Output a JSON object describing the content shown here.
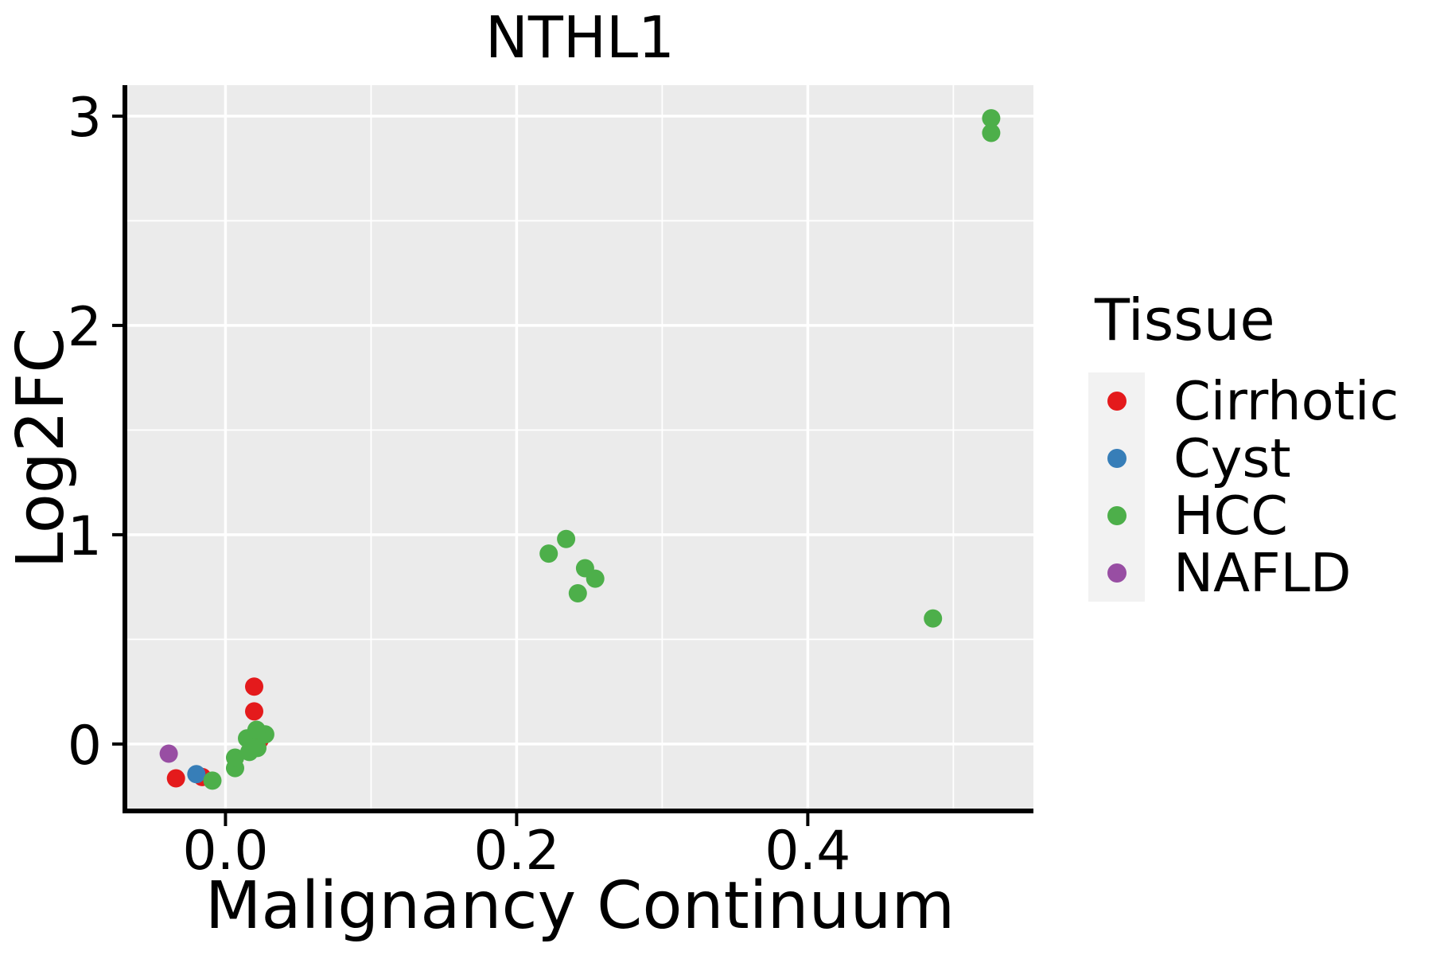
{
  "title": "NTHL1",
  "axes": {
    "x": {
      "label": "Malignancy Continuum",
      "tick_labels": [
        "0.0",
        "0.2",
        "0.4"
      ]
    },
    "y": {
      "label": "Log2FC",
      "tick_labels": [
        "0",
        "1",
        "2",
        "3"
      ]
    }
  },
  "legend": {
    "title": "Tissue",
    "position": "right",
    "items": [
      {
        "label": "Cirrhotic",
        "color": "#E41A1C"
      },
      {
        "label": "Cyst",
        "color": "#377EB8"
      },
      {
        "label": "HCC",
        "color": "#4DAF4A"
      },
      {
        "label": "NAFLD",
        "color": "#984EA3"
      }
    ]
  },
  "style_colors": {
    "panel_background": "#EBEBEB",
    "grid": "#FFFFFF",
    "legend_key_background": "#F2F2F2",
    "axis_line": "#000000",
    "text": "#000000"
  },
  "chart_data": {
    "type": "scatter",
    "title": "NTHL1",
    "xlabel": "Malignancy Continuum",
    "ylabel": "Log2FC",
    "legend_title": "Tissue",
    "legend_position": "right",
    "grid": true,
    "xlim": [
      -0.068,
      0.555
    ],
    "ylim": [
      -0.316,
      3.148
    ],
    "x_major_ticks": [
      0.0,
      0.2,
      0.4
    ],
    "x_tick_labels": [
      "0.0",
      "0.2",
      "0.4"
    ],
    "x_minor_ticks": [
      0.1,
      0.3,
      0.5
    ],
    "y_major_ticks": [
      0,
      1,
      2,
      3
    ],
    "y_tick_labels": [
      "0",
      "1",
      "2",
      "3"
    ],
    "y_minor_ticks": [
      0.5,
      1.5,
      2.5
    ],
    "series": [
      {
        "name": "Cirrhotic",
        "color": "#E41A1C",
        "points": [
          [
            -0.034,
            -0.164
          ],
          [
            -0.016,
            -0.158
          ],
          [
            0.0235,
            0.019
          ],
          [
            0.0197,
            0.156
          ],
          [
            0.0197,
            0.274
          ]
        ]
      },
      {
        "name": "Cyst",
        "color": "#377EB8",
        "points": [
          [
            -0.02,
            -0.144
          ]
        ]
      },
      {
        "name": "HCC",
        "color": "#4DAF4A",
        "points": [
          [
            -0.009,
            -0.175
          ],
          [
            0.0066,
            -0.115
          ],
          [
            0.0066,
            -0.065
          ],
          [
            0.0164,
            -0.038
          ],
          [
            0.0219,
            -0.019
          ],
          [
            0.0148,
            0.027
          ],
          [
            0.0273,
            0.046
          ],
          [
            0.0213,
            0.068
          ],
          [
            0.222,
            0.91
          ],
          [
            0.234,
            0.98
          ],
          [
            0.242,
            0.72
          ],
          [
            0.247,
            0.84
          ],
          [
            0.254,
            0.79
          ],
          [
            0.486,
            0.6
          ],
          [
            0.526,
            2.92
          ],
          [
            0.526,
            2.99
          ]
        ]
      },
      {
        "name": "NAFLD",
        "color": "#984EA3",
        "points": [
          [
            -0.039,
            -0.046
          ]
        ]
      }
    ]
  }
}
